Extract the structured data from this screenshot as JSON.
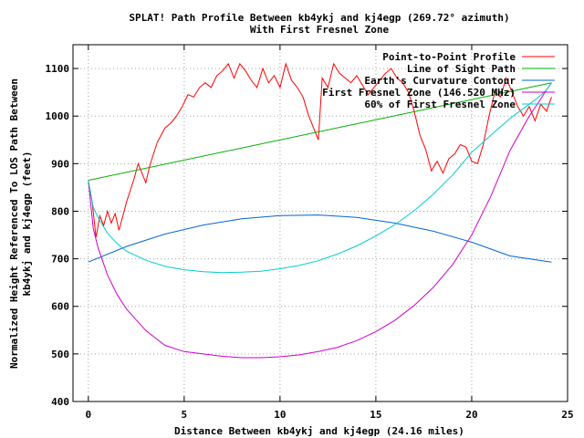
{
  "chart_data": {
    "type": "line",
    "title": "SPLAT! Path Profile Between kb4ykj and kj4egp (269.72° azimuth)",
    "subtitle": "With First Fresnel Zone",
    "xlabel": "Distance Between kb4ykj and kj4egp (24.16 miles)",
    "ylabel_line1": "Normalized Height Referenced To LOS Path Between",
    "ylabel_line2": "kb4ykj and kj4egp (feet)",
    "xlim": [
      -0.8,
      25
    ],
    "ylim": [
      400,
      1150
    ],
    "xticks": [
      0,
      5,
      10,
      15,
      20,
      25
    ],
    "yticks": [
      400,
      500,
      600,
      700,
      800,
      900,
      1000,
      1100
    ],
    "grid": true,
    "legend_position": "top-right",
    "series": [
      {
        "name": "Point-to-Point Profile",
        "color": "#ff0000",
        "x": [
          0,
          0.2,
          0.4,
          0.6,
          0.8,
          1.0,
          1.2,
          1.4,
          1.6,
          1.8,
          2.0,
          2.2,
          2.4,
          2.6,
          2.8,
          3.0,
          3.2,
          3.4,
          3.6,
          3.8,
          4.0,
          4.3,
          4.6,
          4.9,
          5.2,
          5.5,
          5.8,
          6.1,
          6.4,
          6.7,
          7.0,
          7.3,
          7.6,
          7.9,
          8.2,
          8.5,
          8.8,
          9.1,
          9.4,
          9.7,
          10.0,
          10.3,
          10.6,
          10.9,
          11.2,
          11.5,
          11.8,
          12.0,
          12.2,
          12.5,
          12.8,
          13.1,
          13.4,
          13.7,
          14.0,
          14.3,
          14.6,
          14.9,
          15.2,
          15.5,
          15.8,
          16.1,
          16.4,
          16.7,
          17.0,
          17.3,
          17.6,
          17.9,
          18.2,
          18.5,
          18.8,
          19.1,
          19.4,
          19.7,
          20.0,
          20.3,
          20.6,
          20.9,
          21.2,
          21.5,
          21.8,
          22.1,
          22.4,
          22.7,
          23.0,
          23.3,
          23.6,
          23.9,
          24.16
        ],
        "y": [
          860,
          820,
          745,
          790,
          770,
          800,
          775,
          795,
          760,
          790,
          820,
          845,
          870,
          900,
          880,
          860,
          895,
          920,
          945,
          960,
          975,
          985,
          1000,
          1020,
          1045,
          1040,
          1060,
          1070,
          1060,
          1085,
          1095,
          1110,
          1080,
          1110,
          1095,
          1075,
          1060,
          1100,
          1070,
          1085,
          1060,
          1110,
          1075,
          1060,
          1040,
          1000,
          970,
          950,
          1080,
          1060,
          1110,
          1090,
          1080,
          1070,
          1085,
          1065,
          1045,
          1060,
          1075,
          1090,
          1100,
          1080,
          1070,
          1050,
          1010,
          960,
          930,
          885,
          905,
          880,
          910,
          920,
          940,
          935,
          905,
          900,
          940,
          1000,
          1050,
          1040,
          1080,
          1050,
          1020,
          1000,
          1020,
          990,
          1025,
          1010,
          1040
        ]
      },
      {
        "name": "Line of Sight Path",
        "color": "#00b000",
        "x": [
          0,
          24.16
        ],
        "y": [
          865,
          1070
        ]
      },
      {
        "name": "Earth's Curvature Contour",
        "color": "#0066cc",
        "x": [
          0,
          2,
          4,
          6,
          8,
          10,
          12,
          14,
          16,
          18,
          20,
          22,
          24.16
        ],
        "y": [
          693,
          726,
          752,
          771,
          784,
          791,
          792,
          787,
          775,
          758,
          735,
          706,
          693
        ]
      },
      {
        "name": "First Fresnel Zone (146.520 MHz)",
        "color": "#cc00cc",
        "x": [
          0,
          0.25,
          0.5,
          1,
          1.5,
          2,
          3,
          4,
          5,
          6,
          7,
          8,
          9,
          10,
          11,
          12,
          13,
          14,
          15,
          16,
          17,
          18,
          19,
          20,
          21,
          22,
          23,
          23.5,
          23.9,
          24.16
        ],
        "y": [
          865,
          765,
          724,
          666,
          625,
          594,
          549,
          518,
          505,
          500,
          495,
          492,
          492,
          494,
          498,
          505,
          514,
          528,
          547,
          571,
          602,
          640,
          688,
          750,
          832,
          928,
          1000,
          1030,
          1055,
          1070
        ]
      },
      {
        "name": "60% of First Fresnel Zone",
        "color": "#00cccc",
        "x": [
          0,
          0.25,
          0.5,
          1,
          1.5,
          2,
          3,
          4,
          5,
          6,
          7,
          8,
          9,
          10,
          11,
          12,
          13,
          14,
          15,
          16,
          17,
          18,
          19,
          20,
          21,
          22,
          23,
          23.5,
          23.9,
          24.16
        ],
        "y": [
          865,
          809,
          787,
          754,
          732,
          716,
          697,
          684,
          677,
          673,
          671,
          672,
          674,
          679,
          686,
          696,
          710,
          727,
          748,
          772,
          801,
          836,
          876,
          924,
          960,
          995,
          1025,
          1040,
          1055,
          1070
        ]
      }
    ]
  }
}
